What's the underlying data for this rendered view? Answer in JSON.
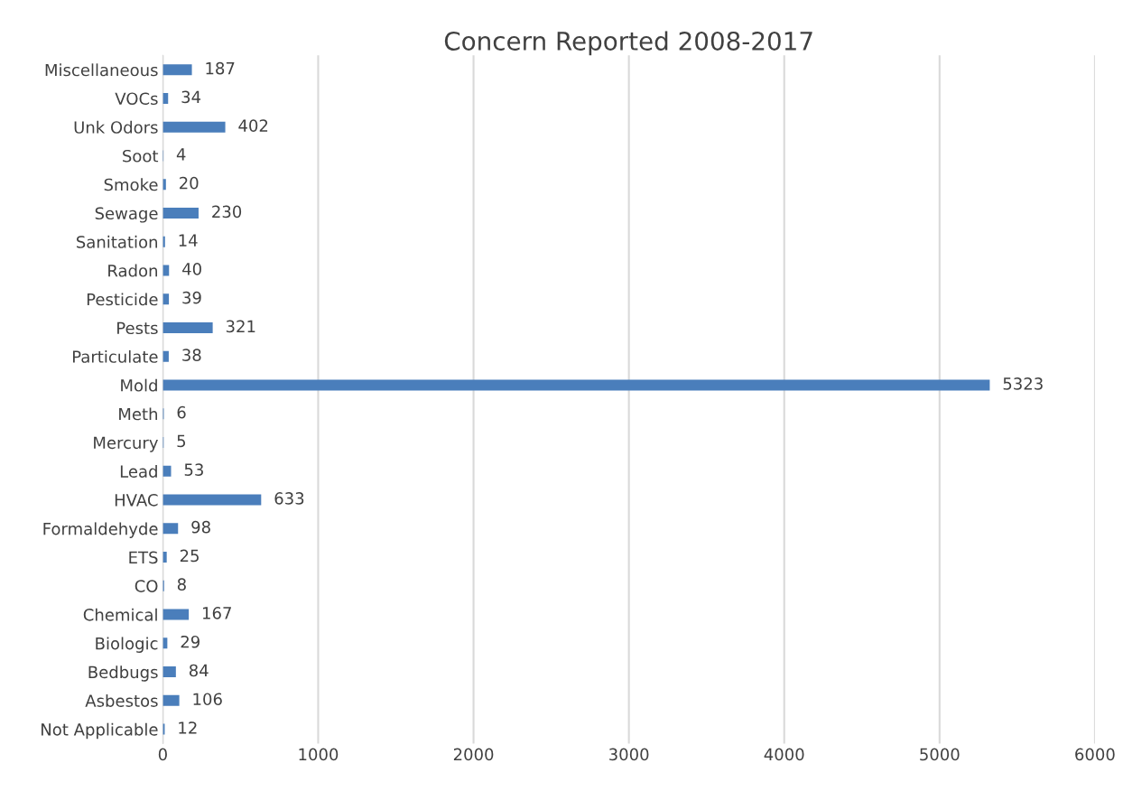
{
  "chart_data": {
    "type": "bar",
    "orientation": "horizontal",
    "title": "Concern Reported 2008-2017",
    "categories": [
      "Miscellaneous",
      "VOCs",
      "Unk Odors",
      "Soot",
      "Smoke",
      "Sewage",
      "Sanitation",
      "Radon",
      "Pesticide",
      "Pests",
      "Particulate",
      "Mold",
      "Meth",
      "Mercury",
      "Lead",
      "HVAC",
      "Formaldehyde",
      "ETS",
      "CO",
      "Chemical",
      "Biologic",
      "Bedbugs",
      "Asbestos",
      "Not Applicable"
    ],
    "values": [
      187,
      34,
      402,
      4,
      20,
      230,
      14,
      40,
      39,
      321,
      38,
      5323,
      6,
      5,
      53,
      633,
      98,
      25,
      8,
      167,
      29,
      84,
      106,
      12
    ],
    "color": "#4a7ebb",
    "xlim": [
      0,
      6000
    ],
    "xticks": [
      0,
      1000,
      2000,
      3000,
      4000,
      5000,
      6000
    ],
    "grid": "x",
    "data_labels": true,
    "legend": false
  }
}
